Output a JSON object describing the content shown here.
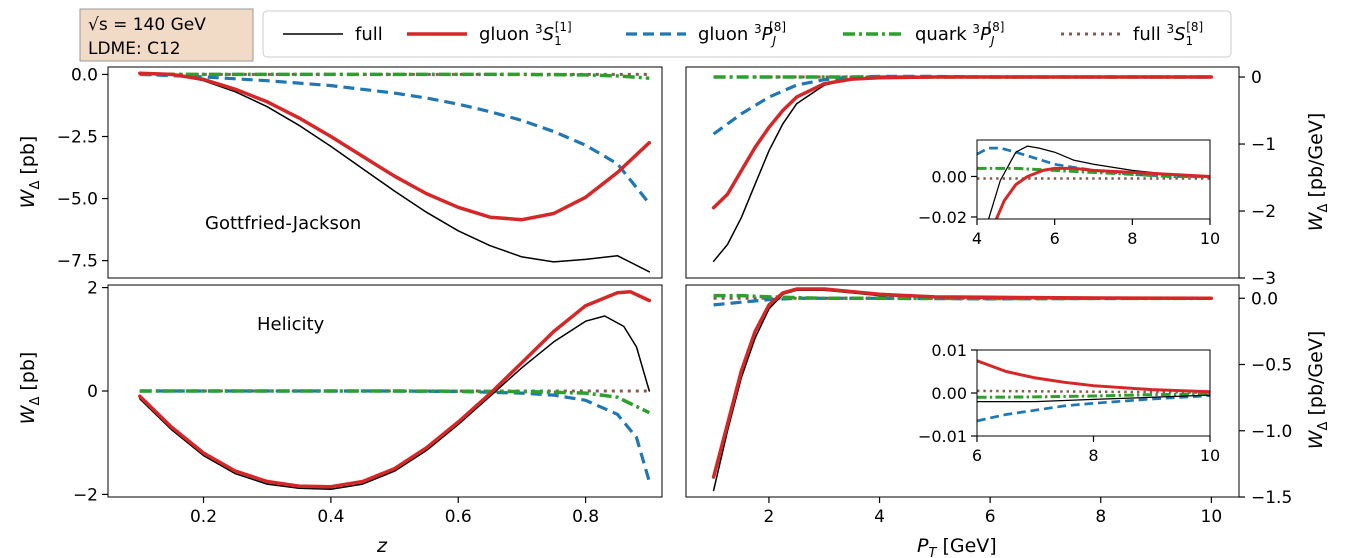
{
  "info_box": {
    "line1": "√s = 140 GeV",
    "line2": "LDME: C12"
  },
  "legend": [
    {
      "key": "full",
      "label": "full",
      "color": "#000000",
      "width": 1.5,
      "dash": ""
    },
    {
      "key": "gS1",
      "label": "gluon ³S₁^[1]",
      "color": "#d62728",
      "width": 3.5,
      "dash": ""
    },
    {
      "key": "gP8",
      "label": "gluon ³P_J^[8]",
      "color": "#1f77b4",
      "width": 3.2,
      "dash": "11,6"
    },
    {
      "key": "qP8",
      "label": "quark ³P_J^[8]",
      "color": "#2ca02c",
      "width": 3.5,
      "dash": "12,4,3,4"
    },
    {
      "key": "fS8",
      "label": "full ³S₁^[8]",
      "color": "#8c564b",
      "width": 3.0,
      "dash": "3,5"
    }
  ],
  "chart_data": [
    {
      "type": "line",
      "panel": "top-left",
      "annotation": "Gottfried-Jackson",
      "xlabel": "",
      "ylabel": "W_Δ [pb]",
      "xlim": [
        0.05,
        0.92
      ],
      "ylim": [
        -8.2,
        0.3
      ],
      "yticks": [
        0.0,
        -2.5,
        -5.0,
        -7.5
      ],
      "ytick_labels": [
        "0.0",
        "−2.5",
        "−5.0",
        "−7.5"
      ],
      "series": [
        {
          "key": "full",
          "x": [
            0.1,
            0.15,
            0.2,
            0.25,
            0.3,
            0.35,
            0.4,
            0.45,
            0.5,
            0.55,
            0.6,
            0.65,
            0.7,
            0.75,
            0.8,
            0.85,
            0.9
          ],
          "y": [
            0.05,
            0.0,
            -0.25,
            -0.7,
            -1.3,
            -2.05,
            -2.9,
            -3.8,
            -4.7,
            -5.55,
            -6.3,
            -6.9,
            -7.35,
            -7.55,
            -7.45,
            -7.3,
            -7.95
          ]
        },
        {
          "key": "gS1",
          "x": [
            0.1,
            0.15,
            0.2,
            0.25,
            0.3,
            0.35,
            0.4,
            0.45,
            0.5,
            0.55,
            0.6,
            0.65,
            0.7,
            0.75,
            0.8,
            0.85,
            0.9
          ],
          "y": [
            0.05,
            0.0,
            -0.2,
            -0.6,
            -1.1,
            -1.75,
            -2.5,
            -3.3,
            -4.1,
            -4.8,
            -5.35,
            -5.75,
            -5.85,
            -5.6,
            -4.95,
            -3.95,
            -2.75
          ]
        },
        {
          "key": "gP8",
          "x": [
            0.1,
            0.2,
            0.3,
            0.4,
            0.5,
            0.55,
            0.6,
            0.65,
            0.7,
            0.75,
            0.8,
            0.85,
            0.9
          ],
          "y": [
            0.0,
            -0.1,
            -0.25,
            -0.45,
            -0.75,
            -0.95,
            -1.2,
            -1.5,
            -1.85,
            -2.3,
            -2.85,
            -3.6,
            -5.2
          ]
        },
        {
          "key": "qP8",
          "x": [
            0.1,
            0.3,
            0.5,
            0.7,
            0.8,
            0.85,
            0.9
          ],
          "y": [
            0.0,
            0.0,
            0.0,
            0.0,
            -0.02,
            -0.06,
            -0.15
          ]
        },
        {
          "key": "fS8",
          "x": [
            0.1,
            0.3,
            0.5,
            0.7,
            0.85,
            0.9
          ],
          "y": [
            0.0,
            0.0,
            0.0,
            0.0,
            0.0,
            0.0
          ]
        }
      ]
    },
    {
      "type": "line",
      "panel": "bottom-left",
      "annotation": "Helicity",
      "xlabel": "z",
      "ylabel": "W_Δ [pb]",
      "xlim": [
        0.05,
        0.92
      ],
      "ylim": [
        -2.05,
        2.05
      ],
      "xticks": [
        0.2,
        0.4,
        0.6,
        0.8
      ],
      "xtick_labels": [
        "0.2",
        "0.4",
        "0.6",
        "0.8"
      ],
      "yticks": [
        2,
        0,
        -2
      ],
      "ytick_labels": [
        "2",
        "0",
        "−2"
      ],
      "series": [
        {
          "key": "full",
          "x": [
            0.1,
            0.15,
            0.2,
            0.25,
            0.3,
            0.35,
            0.4,
            0.45,
            0.5,
            0.55,
            0.6,
            0.65,
            0.7,
            0.75,
            0.8,
            0.83,
            0.86,
            0.88,
            0.9
          ],
          "y": [
            -0.15,
            -0.75,
            -1.25,
            -1.6,
            -1.8,
            -1.88,
            -1.9,
            -1.8,
            -1.55,
            -1.15,
            -0.65,
            -0.1,
            0.45,
            0.95,
            1.35,
            1.45,
            1.25,
            0.85,
            0.0
          ]
        },
        {
          "key": "gS1",
          "x": [
            0.1,
            0.15,
            0.2,
            0.25,
            0.3,
            0.35,
            0.4,
            0.45,
            0.5,
            0.55,
            0.6,
            0.65,
            0.7,
            0.75,
            0.8,
            0.85,
            0.87,
            0.9
          ],
          "y": [
            -0.1,
            -0.7,
            -1.2,
            -1.55,
            -1.75,
            -1.84,
            -1.85,
            -1.75,
            -1.5,
            -1.1,
            -0.6,
            -0.05,
            0.55,
            1.15,
            1.65,
            1.9,
            1.92,
            1.75
          ]
        },
        {
          "key": "gP8",
          "x": [
            0.1,
            0.3,
            0.5,
            0.6,
            0.7,
            0.75,
            0.8,
            0.85,
            0.88,
            0.9
          ],
          "y": [
            0.0,
            0.0,
            0.0,
            -0.01,
            -0.04,
            -0.08,
            -0.18,
            -0.45,
            -0.9,
            -1.75
          ]
        },
        {
          "key": "qP8",
          "x": [
            0.1,
            0.3,
            0.5,
            0.7,
            0.8,
            0.85,
            0.9
          ],
          "y": [
            0.0,
            0.0,
            0.0,
            -0.01,
            -0.04,
            -0.12,
            -0.42
          ]
        },
        {
          "key": "fS8",
          "x": [
            0.1,
            0.3,
            0.5,
            0.7,
            0.8,
            0.9
          ],
          "y": [
            0.0,
            0.0,
            0.0,
            0.0,
            0.0,
            0.0
          ]
        }
      ]
    },
    {
      "type": "line",
      "panel": "top-right",
      "xlabel": "",
      "ylabel": "W_Δ [pb/GeV]",
      "xlim": [
        0.5,
        10.5
      ],
      "ylim": [
        -3.0,
        0.15
      ],
      "yticks": [
        0,
        -1,
        -2,
        -3
      ],
      "ytick_labels": [
        "0",
        "−1",
        "−2",
        "−3"
      ],
      "series": [
        {
          "key": "full",
          "x": [
            1,
            1.25,
            1.5,
            1.75,
            2,
            2.25,
            2.5,
            3,
            3.5,
            4,
            5,
            6,
            8,
            10
          ],
          "y": [
            -2.75,
            -2.5,
            -2.1,
            -1.6,
            -1.1,
            -0.7,
            -0.4,
            -0.12,
            -0.03,
            0.0,
            0.0,
            0.0,
            0.0,
            0.0
          ]
        },
        {
          "key": "gS1",
          "x": [
            1,
            1.25,
            1.5,
            1.75,
            2,
            2.25,
            2.5,
            3,
            3.5,
            4,
            5,
            6,
            8,
            10
          ],
          "y": [
            -1.95,
            -1.75,
            -1.4,
            -1.05,
            -0.75,
            -0.5,
            -0.3,
            -0.1,
            -0.03,
            -0.01,
            0.0,
            0.0,
            0.0,
            0.0
          ]
        },
        {
          "key": "gP8",
          "x": [
            1,
            1.5,
            2,
            2.5,
            3,
            3.5,
            4,
            5,
            6,
            8,
            10
          ],
          "y": [
            -0.85,
            -0.55,
            -0.3,
            -0.12,
            -0.04,
            0.0,
            0.01,
            0.01,
            0.0,
            0.0,
            0.0
          ]
        },
        {
          "key": "qP8",
          "x": [
            1,
            2,
            4,
            6,
            8,
            10
          ],
          "y": [
            0.0,
            0.0,
            0.0,
            0.0,
            0.0,
            0.0
          ]
        },
        {
          "key": "fS8",
          "x": [
            1,
            2,
            4,
            6,
            8,
            10
          ],
          "y": [
            0.0,
            0.0,
            0.0,
            0.0,
            0.0,
            0.0
          ]
        }
      ]
    },
    {
      "type": "line",
      "panel": "top-right-inset",
      "xlim": [
        4,
        10
      ],
      "ylim": [
        -0.021,
        0.018
      ],
      "xticks": [
        4,
        6,
        8,
        10
      ],
      "xtick_labels": [
        "4",
        "6",
        "8",
        "10"
      ],
      "yticks": [
        0.0,
        -0.02
      ],
      "ytick_labels": [
        "0.00",
        "−0.02"
      ],
      "series": [
        {
          "key": "full",
          "x": [
            4.3,
            4.6,
            5,
            5.3,
            5.6,
            6,
            6.5,
            7,
            8,
            9,
            10
          ],
          "y": [
            -0.021,
            -0.002,
            0.012,
            0.015,
            0.014,
            0.012,
            0.008,
            0.006,
            0.003,
            0.001,
            0.0
          ]
        },
        {
          "key": "gS1",
          "x": [
            4.5,
            4.7,
            5,
            5.3,
            5.7,
            6,
            6.5,
            7,
            8,
            9,
            10
          ],
          "y": [
            -0.021,
            -0.012,
            -0.004,
            0.0,
            0.003,
            0.004,
            0.004,
            0.003,
            0.002,
            0.001,
            0.0
          ]
        },
        {
          "key": "gP8",
          "x": [
            4,
            4.3,
            4.6,
            5,
            5.5,
            6,
            7,
            8,
            9,
            10
          ],
          "y": [
            0.011,
            0.014,
            0.014,
            0.012,
            0.009,
            0.006,
            0.003,
            0.001,
            0.0,
            0.0
          ]
        },
        {
          "key": "qP8",
          "x": [
            4,
            4.5,
            5,
            6,
            7,
            8,
            9,
            10
          ],
          "y": [
            0.004,
            0.004,
            0.004,
            0.003,
            0.002,
            0.001,
            0.0,
            0.0
          ]
        },
        {
          "key": "fS8",
          "x": [
            4,
            5,
            6,
            7,
            8,
            9,
            10
          ],
          "y": [
            -0.001,
            -0.001,
            -0.001,
            -0.001,
            -0.001,
            -0.001,
            -0.001
          ]
        }
      ]
    },
    {
      "type": "line",
      "panel": "bottom-right",
      "xlabel": "P_T [GeV]",
      "ylabel": "W_Δ [pb/GeV]",
      "xlim": [
        0.5,
        10.5
      ],
      "ylim": [
        -1.5,
        0.1
      ],
      "xticks": [
        2,
        4,
        6,
        8,
        10
      ],
      "xtick_labels": [
        "2",
        "4",
        "6",
        "8",
        "10"
      ],
      "yticks": [
        0.0,
        -0.5,
        -1.0,
        -1.5
      ],
      "ytick_labels": [
        "0.0",
        "−0.5",
        "−1.0",
        "−1.5"
      ],
      "series": [
        {
          "key": "full",
          "x": [
            1,
            1.25,
            1.5,
            1.75,
            2,
            2.25,
            2.5,
            3,
            3.5,
            4,
            5,
            6,
            8,
            10
          ],
          "y": [
            -1.45,
            -1.0,
            -0.6,
            -0.3,
            -0.08,
            0.03,
            0.06,
            0.06,
            0.04,
            0.02,
            0.01,
            0.0,
            0.0,
            0.0
          ]
        },
        {
          "key": "gS1",
          "x": [
            1,
            1.25,
            1.5,
            1.75,
            2,
            2.25,
            2.5,
            3,
            3.5,
            4,
            5,
            6,
            8,
            10
          ],
          "y": [
            -1.35,
            -0.95,
            -0.55,
            -0.25,
            -0.05,
            0.04,
            0.07,
            0.07,
            0.05,
            0.03,
            0.01,
            0.007,
            0.002,
            0.0
          ]
        },
        {
          "key": "gP8",
          "x": [
            1,
            1.5,
            2,
            2.5,
            3,
            4,
            6,
            8,
            10
          ],
          "y": [
            -0.05,
            -0.03,
            -0.01,
            0.0,
            0.0,
            0.0,
            -0.005,
            -0.002,
            0.0
          ]
        },
        {
          "key": "qP8",
          "x": [
            1,
            1.5,
            2,
            3,
            4,
            6,
            8,
            10
          ],
          "y": [
            0.02,
            0.02,
            0.01,
            0.0,
            0.0,
            -0.002,
            -0.001,
            0.0
          ]
        },
        {
          "key": "fS8",
          "x": [
            1,
            2,
            4,
            6,
            8,
            10
          ],
          "y": [
            0.0,
            0.0,
            0.0,
            0.0,
            0.0,
            0.0
          ]
        }
      ]
    },
    {
      "type": "line",
      "panel": "bottom-right-inset",
      "xlim": [
        6,
        10
      ],
      "ylim": [
        -0.01,
        0.01
      ],
      "xticks": [
        6,
        8,
        10
      ],
      "xtick_labels": [
        "6",
        "8",
        "10"
      ],
      "yticks": [
        0.01,
        0.0,
        -0.01
      ],
      "ytick_labels": [
        "0.01",
        "0.00",
        "−0.01"
      ],
      "series": [
        {
          "key": "full",
          "x": [
            6,
            7,
            8,
            9,
            10
          ],
          "y": [
            -0.002,
            -0.002,
            -0.0015,
            -0.001,
            -0.0005
          ]
        },
        {
          "key": "gS1",
          "x": [
            6,
            6.5,
            7,
            7.5,
            8,
            9,
            10
          ],
          "y": [
            0.0075,
            0.005,
            0.0035,
            0.0025,
            0.0017,
            0.0008,
            0.0003
          ]
        },
        {
          "key": "gP8",
          "x": [
            6,
            6.5,
            7,
            7.5,
            8,
            9,
            10
          ],
          "y": [
            -0.0065,
            -0.005,
            -0.004,
            -0.003,
            -0.0024,
            -0.0014,
            -0.0006
          ]
        },
        {
          "key": "qP8",
          "x": [
            6,
            7,
            8,
            9,
            10
          ],
          "y": [
            -0.001,
            -0.0009,
            -0.0007,
            -0.0004,
            -0.0002
          ]
        },
        {
          "key": "fS8",
          "x": [
            6,
            7,
            8,
            9,
            10
          ],
          "y": [
            0.0005,
            0.0004,
            0.0003,
            0.0002,
            0.0001
          ]
        }
      ]
    }
  ]
}
